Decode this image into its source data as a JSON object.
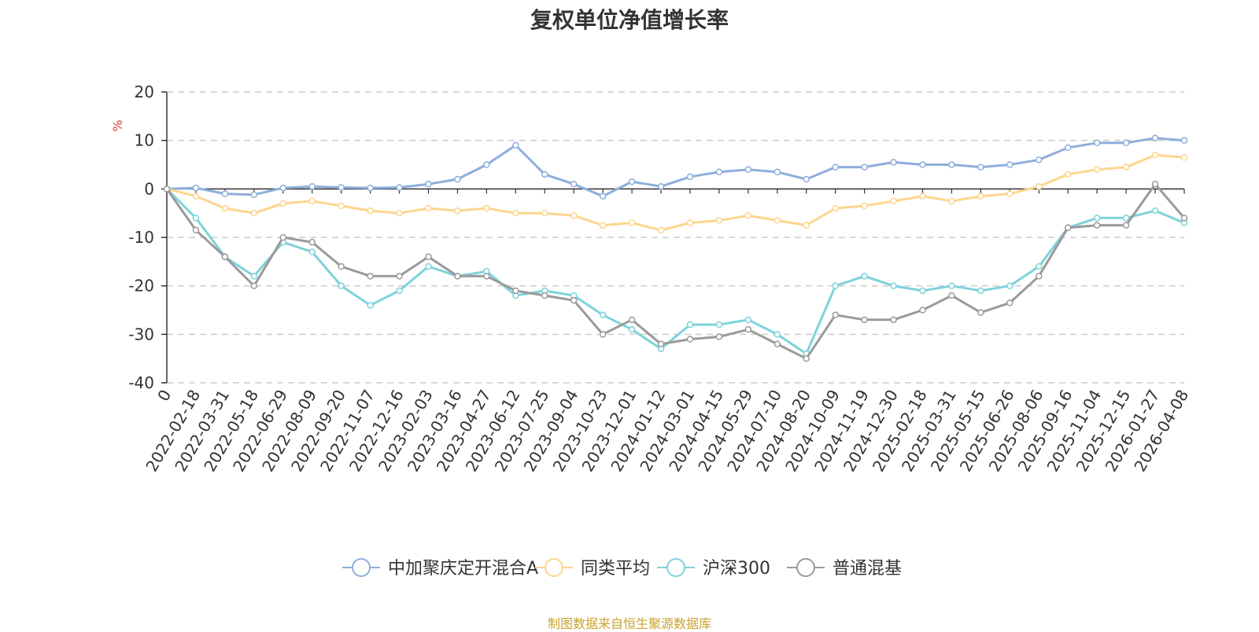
{
  "chart_data": {
    "type": "line",
    "title": "复权单位净值增长率",
    "ylabel": "%",
    "ylim": [
      -40,
      20
    ],
    "yticks": [
      20,
      10,
      0,
      -10,
      -20,
      -30,
      -40
    ],
    "xticks": [
      "0",
      "2022-02-18",
      "2022-03-31",
      "2022-05-18",
      "2022-06-29",
      "2022-08-09",
      "2022-09-20",
      "2022-11-07",
      "2022-12-16",
      "2023-02-03",
      "2023-03-16",
      "2023-04-27",
      "2023-06-12",
      "2023-07-25",
      "2023-09-04",
      "2023-10-23",
      "2023-12-01",
      "2024-01-12",
      "2024-03-01",
      "2024-04-15",
      "2024-05-29",
      "2024-07-10",
      "2024-08-20",
      "2024-10-09",
      "2024-11-19",
      "2024-12-30",
      "2025-02-18",
      "2025-03-31",
      "2025-05-15",
      "2025-06-26",
      "2025-08-06",
      "2025-09-16",
      "2025-11-04",
      "2025-12-15",
      "2026-01-27",
      "2026-04-08"
    ],
    "grid": "horizontal-dashed",
    "legend_position": "bottom",
    "series": [
      {
        "name": "中加聚庆定开混合A",
        "color": "#8eaedc",
        "values": [
          0,
          0.2,
          -1.0,
          -1.2,
          0.2,
          0.5,
          0.3,
          0.2,
          0.3,
          1.0,
          2.0,
          5.0,
          9.0,
          3.0,
          1.0,
          -1.5,
          1.5,
          0.5,
          2.5,
          3.5,
          4.0,
          3.5,
          2.0,
          4.5,
          4.5,
          5.5,
          5.0,
          5.0,
          4.5,
          5.0,
          6.0,
          8.5,
          9.5,
          9.5,
          10.5,
          10.0
        ]
      },
      {
        "name": "同类平均",
        "color": "#fdd58d",
        "values": [
          0,
          -1.5,
          -4.0,
          -5.0,
          -3.0,
          -2.5,
          -3.5,
          -4.5,
          -5.0,
          -4.0,
          -4.5,
          -4.0,
          -5.0,
          -5.0,
          -5.5,
          -7.5,
          -7.0,
          -8.5,
          -7.0,
          -6.5,
          -5.5,
          -6.5,
          -7.5,
          -4.0,
          -3.5,
          -2.5,
          -1.5,
          -2.5,
          -1.5,
          -1.0,
          0.5,
          3.0,
          4.0,
          4.5,
          7.0,
          6.5
        ]
      },
      {
        "name": "沪深300",
        "color": "#7dd3d9",
        "values": [
          0,
          -6.0,
          -14.0,
          -18.0,
          -11.0,
          -13.0,
          -20.0,
          -24.0,
          -21.0,
          -16.0,
          -18.0,
          -17.0,
          -22.0,
          -21.0,
          -22.0,
          -26.0,
          -29.0,
          -33.0,
          -28.0,
          -28.0,
          -27.0,
          -30.0,
          -34.0,
          -20.0,
          -18.0,
          -20.0,
          -21.0,
          -20.0,
          -21.0,
          -20.0,
          -16.0,
          -8.0,
          -6.0,
          -6.0,
          -4.5,
          -7.0
        ]
      },
      {
        "name": "普通混基",
        "color": "#9a9a9a",
        "values": [
          0,
          -8.5,
          -14.0,
          -20.0,
          -10.0,
          -11.0,
          -16.0,
          -18.0,
          -18.0,
          -14.0,
          -18.0,
          -18.0,
          -21.0,
          -22.0,
          -23.0,
          -30.0,
          -27.0,
          -32.0,
          -31.0,
          -30.5,
          -29.0,
          -32.0,
          -35.0,
          -26.0,
          -27.0,
          -27.0,
          -25.0,
          -22.0,
          -25.5,
          -23.5,
          -18.0,
          -8.0,
          -7.5,
          -7.5,
          1.0,
          -6.0
        ]
      }
    ],
    "source_note": "制图数据来自恒生聚源数据库"
  }
}
